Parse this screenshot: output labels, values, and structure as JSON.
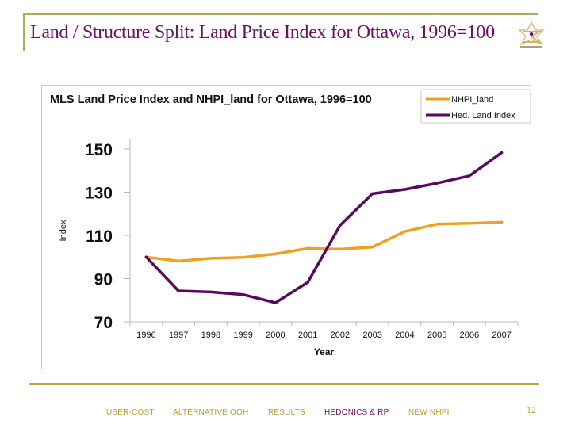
{
  "slide": {
    "title": "Land / Structure Split: Land Price Index for Ottawa, 1996=100",
    "logo_icon": "sigma-star-logo-icon",
    "page_number": "12"
  },
  "nav": {
    "items": [
      {
        "label": "USER-COST",
        "active": false
      },
      {
        "label": "ALTERNATIVE OOH",
        "active": false
      },
      {
        "label": "RESULTS",
        "active": false
      },
      {
        "label": "HEDONICS & RP",
        "active": true
      },
      {
        "label": "NEW NHPI",
        "active": false
      }
    ]
  },
  "colors": {
    "accent_gold": "#b8a84a",
    "title_purple": "#6b1068",
    "nhpi_land": "#f0a020",
    "hed_land_index": "#5a0a5e"
  },
  "chart_data": {
    "type": "line",
    "title": "MLS Land Price Index and NHPI_land for Ottawa, 1996=100",
    "xlabel": "Year",
    "ylabel": "Index",
    "categories": [
      "1996",
      "1997",
      "1998",
      "1999",
      "2000",
      "2001",
      "2002",
      "2003",
      "2004",
      "2005",
      "2006",
      "2007"
    ],
    "ylim": [
      70,
      150
    ],
    "yticks": [
      "150",
      "130",
      "110",
      "90",
      "70"
    ],
    "grid": false,
    "legend_position": "top-right",
    "series": [
      {
        "name": "NHPI_land",
        "color": "#f0a020",
        "values": [
          100,
          98.1,
          99.4,
          99.8,
          101.4,
          104.0,
          103.6,
          104.6,
          111.8,
          115.2,
          115.6,
          116.1
        ]
      },
      {
        "name": "Hed. Land Index",
        "color": "#5a0a5e",
        "values": [
          100,
          84.3,
          83.8,
          82.6,
          78.8,
          88.3,
          114.7,
          129.3,
          131.3,
          134.2,
          137.6,
          148.3
        ]
      }
    ]
  }
}
